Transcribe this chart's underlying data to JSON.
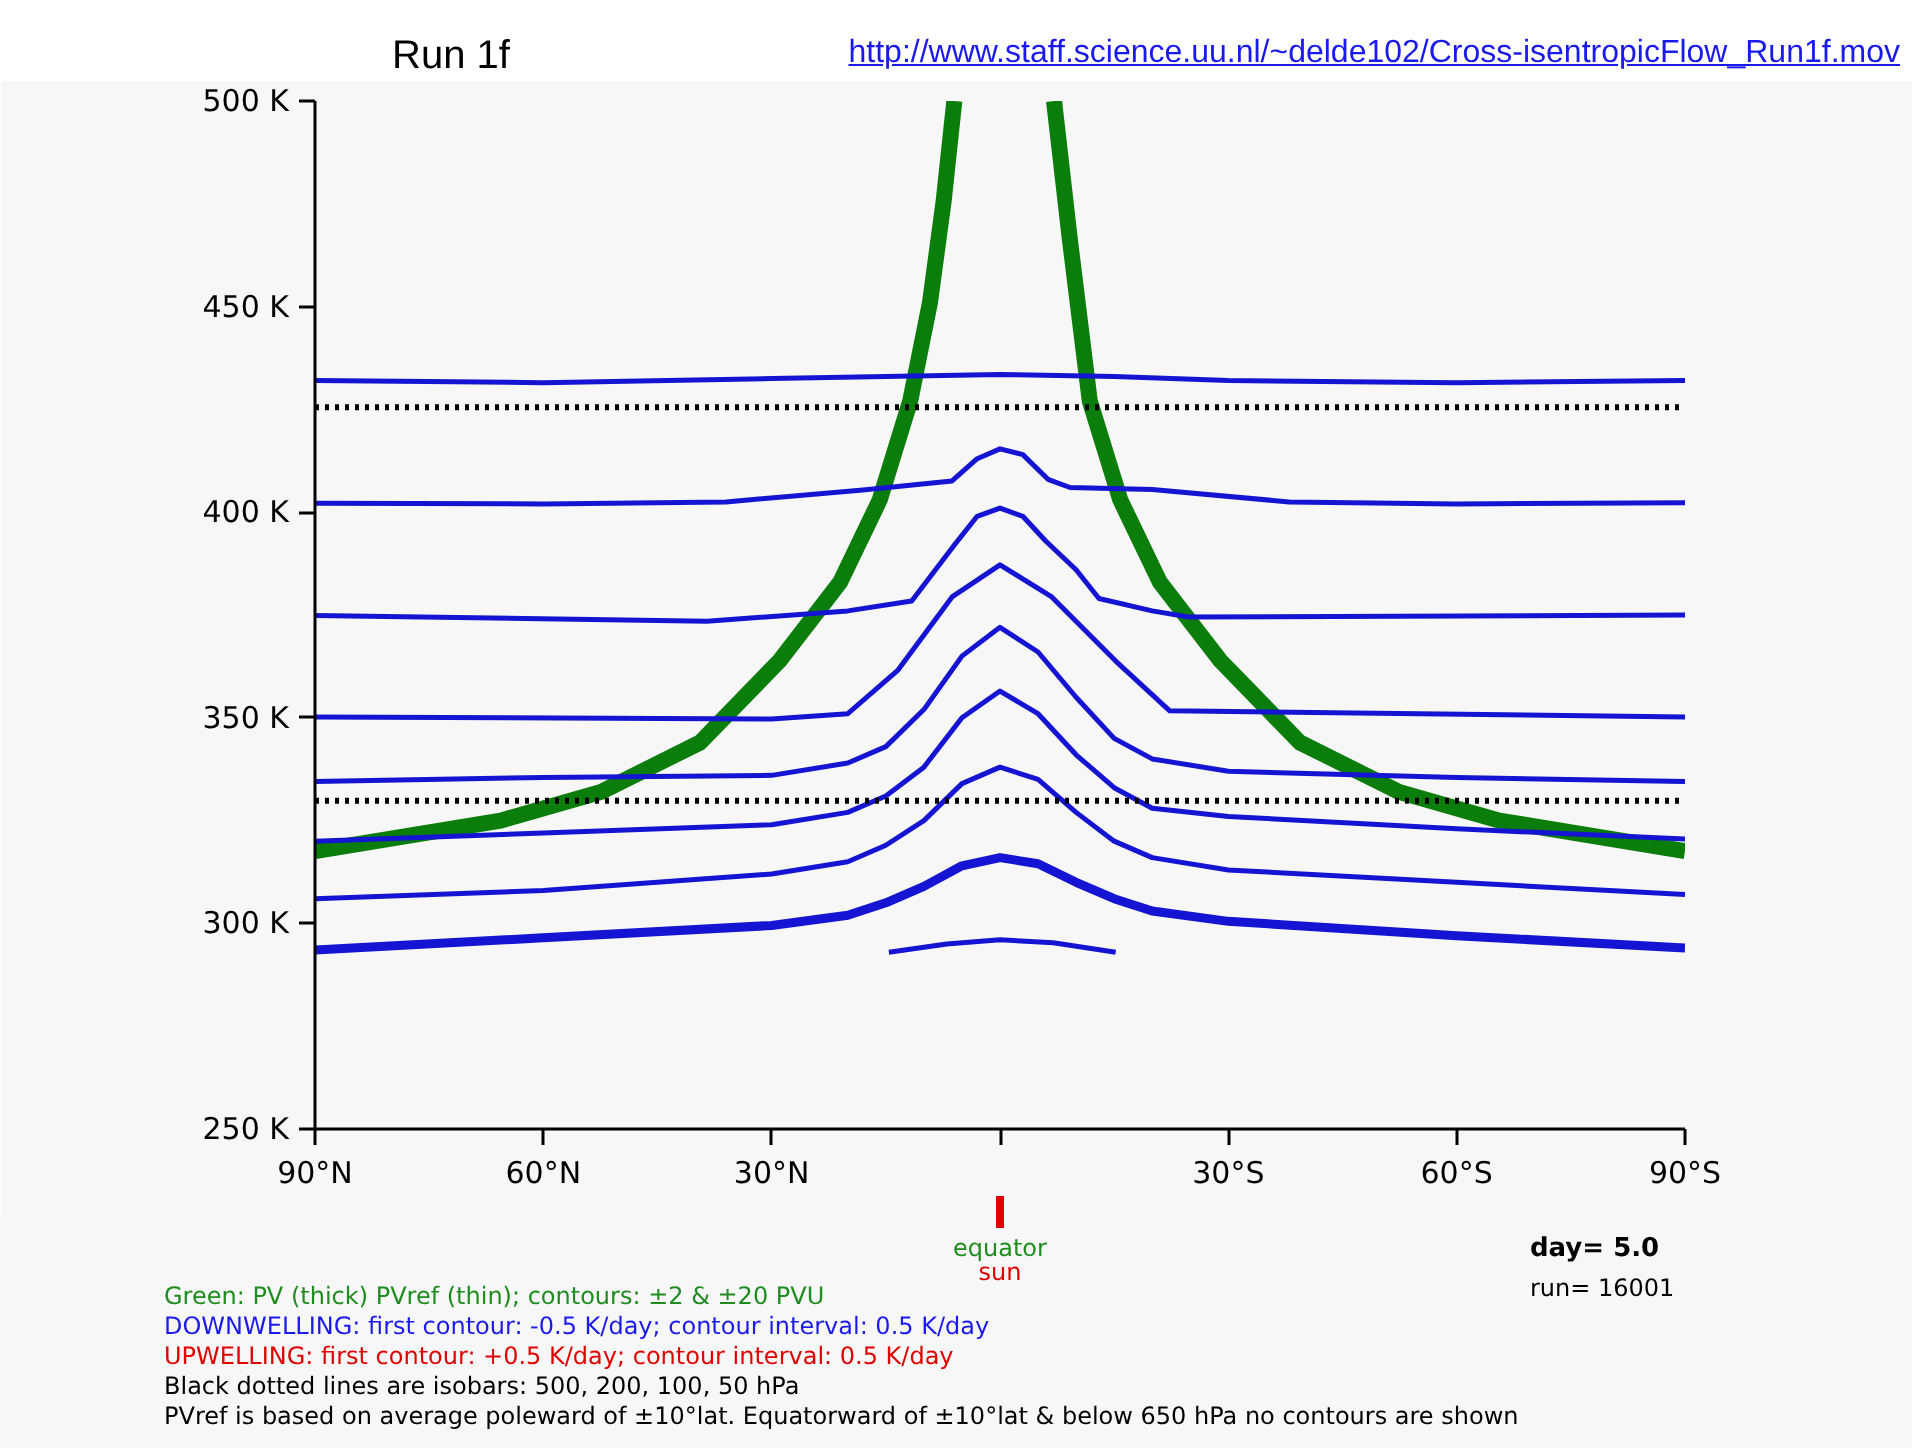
{
  "chart_data": {
    "type": "line",
    "title": "Run 1f",
    "xlim": [
      -90,
      90
    ],
    "ylim": [
      250,
      500
    ],
    "xticks": [
      {
        "value": -90,
        "label": "90°N"
      },
      {
        "value": -60,
        "label": "60°N"
      },
      {
        "value": -30,
        "label": "30°N"
      },
      {
        "value": 0,
        "label": null
      },
      {
        "value": 30,
        "label": "30°S"
      },
      {
        "value": 60,
        "label": "60°S"
      },
      {
        "value": 90,
        "label": "90°S"
      }
    ],
    "yticks": [
      {
        "value": 250,
        "label": "250 K"
      },
      {
        "value": 300,
        "label": "300 K"
      },
      {
        "value": 350,
        "label": "350 K"
      },
      {
        "value": 400,
        "label": "400 K"
      },
      {
        "value": 450,
        "label": "450 K"
      },
      {
        "value": 500,
        "label": "500 K"
      }
    ],
    "grid": false,
    "series": [
      {
        "color": "#0a7d0a",
        "x": [
          -90,
          -65.6,
          -52.4,
          -39.4,
          -28.9,
          -21,
          -15.8,
          -11.8,
          -9.2,
          -7.4,
          -6,
          0,
          7.1,
          9.2,
          11.8,
          15.8,
          21,
          28.9,
          39.4,
          52.4,
          65.6,
          90
        ],
        "values": [
          317.6,
          325,
          332,
          344,
          364,
          383,
          403,
          427,
          451,
          475.7,
          500,
          null,
          500,
          466,
          427,
          403,
          383,
          364,
          344,
          332,
          325,
          317.6
        ]
      },
      {
        "color": "#1414d2",
        "x": [
          -90,
          -60,
          -30,
          -15,
          0,
          15,
          30,
          60,
          90
        ],
        "values": [
          432,
          431.5,
          432.5,
          433,
          433.5,
          433,
          432,
          431.5,
          432
        ]
      },
      {
        "color": "#1414d2",
        "x": [
          -90,
          -60,
          -36,
          -18,
          -6.3,
          -3,
          0,
          3,
          6.3,
          9.2,
          20,
          38,
          60,
          90
        ],
        "values": [
          402.2,
          402,
          402.5,
          405.4,
          407.6,
          413,
          415.4,
          414,
          408,
          406,
          405.5,
          402.5,
          402,
          402.3
        ]
      },
      {
        "color": "#1414d2",
        "x": [
          -90,
          -38.5,
          -20,
          -11.6,
          -6,
          -3,
          0,
          3,
          6,
          10,
          13,
          20,
          24.8,
          90
        ],
        "values": [
          374.9,
          373.5,
          376,
          378.4,
          392,
          399,
          401,
          399,
          393,
          386,
          379,
          376,
          374.5,
          375
        ]
      },
      {
        "color": "#1414d2",
        "x": [
          -90,
          -30,
          -20,
          -13.4,
          -6.3,
          0,
          6.8,
          15.2,
          22.3,
          90
        ],
        "values": [
          350.2,
          349.7,
          351,
          361.6,
          379.4,
          387.2,
          379.4,
          363.8,
          351.7,
          350.2
        ]
      },
      {
        "color": "#1414d2",
        "x": [
          -90,
          -60,
          -30,
          -20,
          -15,
          -10,
          -5,
          0,
          5,
          10,
          15,
          20,
          30,
          60,
          90
        ],
        "values": [
          334.5,
          335.5,
          336,
          339,
          343,
          352,
          365,
          372,
          366,
          355,
          345,
          340,
          337,
          335.5,
          334.5
        ]
      },
      {
        "color": "#1414d2",
        "x": [
          -90,
          -60,
          -30,
          -20,
          -15,
          -10,
          -5,
          0,
          5,
          10,
          15,
          20,
          30,
          60,
          90
        ],
        "values": [
          320,
          322,
          324,
          327,
          331,
          338,
          350,
          356.5,
          351,
          341,
          333,
          328,
          326,
          323,
          320.5
        ]
      },
      {
        "color": "#1414d2",
        "x": [
          -90,
          -60,
          -30,
          -20,
          -15,
          -10,
          -5,
          0,
          5,
          10,
          15,
          20,
          30,
          60,
          90
        ],
        "values": [
          306,
          308,
          312,
          315,
          319,
          325,
          334,
          338,
          335,
          327,
          320,
          316,
          313,
          310,
          307
        ]
      },
      {
        "color": "#1414d2",
        "x": [
          -90,
          -60,
          -30,
          -20,
          -15,
          -10,
          -5,
          0,
          5,
          10,
          15,
          20,
          30,
          60,
          90
        ],
        "values": [
          293.5,
          296.5,
          299.5,
          302,
          305,
          309,
          314,
          316,
          314.5,
          310,
          306,
          303,
          300.5,
          297,
          294
        ]
      },
      {
        "color": "#1414d2",
        "x": [
          -14.6,
          -7,
          0,
          7,
          15.2
        ],
        "values": [
          293,
          295,
          296,
          295.3,
          293
        ]
      }
    ],
    "ref_lines": [
      {
        "axis": "y",
        "value": 425.5,
        "color": "#000000",
        "line_style": "dotted"
      },
      {
        "axis": "y",
        "value": 329.8,
        "color": "#000000",
        "line_style": "dotted"
      }
    ],
    "annotations": [
      "http://www.staff.science.uu.nl/~delde102/Cross-isentropicFlow_Run1f.mov",
      "equator",
      "sun",
      "day=   5.0",
      "run=  16001",
      "Green: PV (thick) PVref (thin); contours: ±2 & ±20 PVU",
      "DOWNWELLING: first contour: -0.5 K/day; contour interval: 0.5 K/day",
      "UPWELLING: first contour: +0.5 K/day; contour interval: 0.5 K/day",
      "Black dotted lines are isobars: 500, 200, 100, 50 hPa",
      "PVref is based on average poleward of ±10°lat. Equatorward of ±10°lat & below 650 hPa no contours are shown"
    ]
  }
}
